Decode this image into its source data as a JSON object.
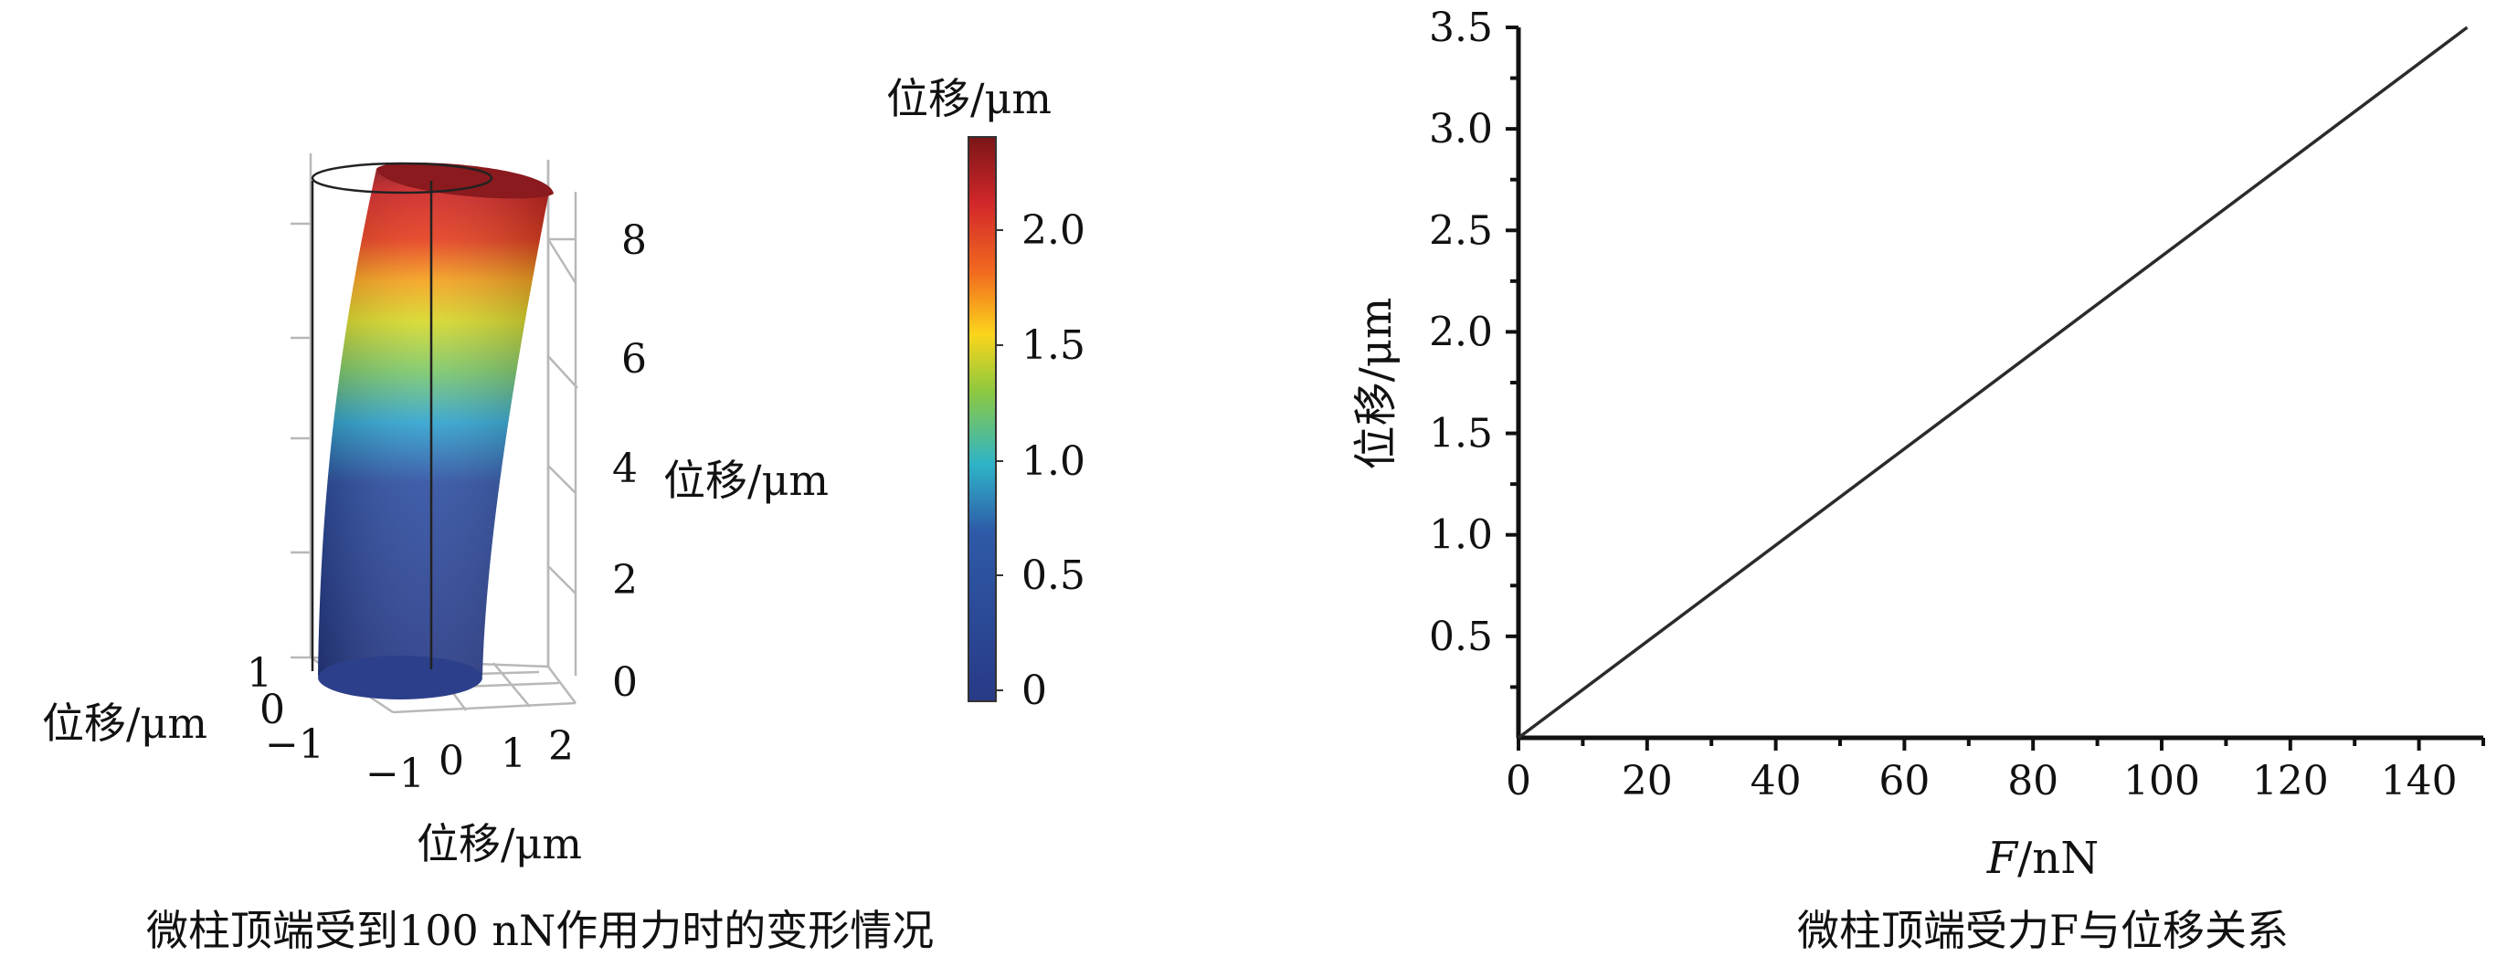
{
  "left_panel": {
    "caption": "微柱顶端受到100 nN作用力时的变形情况",
    "axis_labels": {
      "z": "位移/μm",
      "y": "位移/μm",
      "x": "位移/μm"
    },
    "z_ticks": [
      "8",
      "6",
      "4",
      "2",
      "0"
    ],
    "y_ticks": [
      "1",
      "0",
      "−1"
    ],
    "x_ticks": [
      "−1",
      "0",
      "1",
      "2"
    ],
    "colorbar": {
      "title": "位移/μm",
      "ticks": [
        "2.0",
        "1.5",
        "1.0",
        "0.5",
        "0"
      ],
      "colors": [
        "#7a1518",
        "#d3282a",
        "#f26a1f",
        "#fbd51b",
        "#8ec93f",
        "#2eb4c8",
        "#2e5aa8",
        "#283a86"
      ]
    }
  },
  "right_panel": {
    "caption": "微柱顶端受力F与位移关系"
  },
  "chart_data": [
    {
      "type": "line",
      "title": "微柱顶端受力F与位移关系",
      "xlabel_italic": "F",
      "xlabel_rest": "/nN",
      "ylabel": "位移/μm",
      "xlim": [
        0,
        150
      ],
      "ylim": [
        0,
        3.5
      ],
      "x_ticks": [
        0,
        20,
        40,
        60,
        80,
        100,
        120,
        140
      ],
      "y_ticks": [
        0.5,
        1.0,
        1.5,
        2.0,
        2.5,
        3.0,
        3.5
      ],
      "y_tick_labels": [
        "0.5",
        "1.0",
        "1.5",
        "2.0",
        "2.5",
        "3.0",
        "3.5"
      ],
      "series": [
        {
          "x": [
            0,
            147.5
          ],
          "y": [
            0,
            3.5
          ]
        }
      ]
    }
  ]
}
